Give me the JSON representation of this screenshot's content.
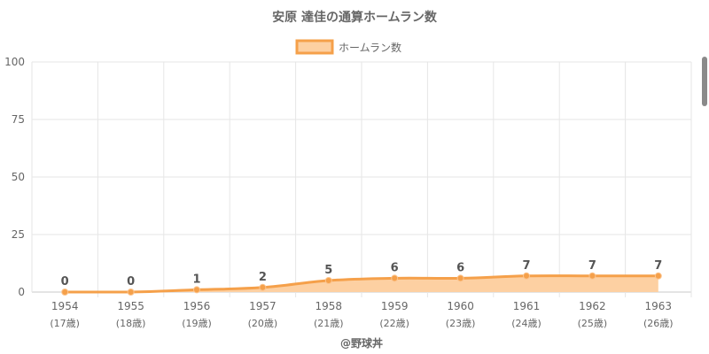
{
  "chart_data": {
    "type": "area",
    "title": "安原 達佳の通算ホームラン数",
    "legend": {
      "label": "ホームラン数",
      "position": "top"
    },
    "years": [
      "1954",
      "1955",
      "1956",
      "1957",
      "1958",
      "1959",
      "1960",
      "1961",
      "1962",
      "1963"
    ],
    "ages": [
      "(17歳)",
      "(18歳)",
      "(19歳)",
      "(20歳)",
      "(21歳)",
      "(22歳)",
      "(23歳)",
      "(24歳)",
      "(25歳)",
      "(26歳)"
    ],
    "series": [
      {
        "name": "ホームラン数",
        "values": [
          0,
          0,
          1,
          2,
          5,
          6,
          6,
          7,
          7,
          7
        ]
      }
    ],
    "ylim": [
      0,
      100
    ],
    "yticks": [
      0,
      25,
      50,
      75,
      100
    ],
    "grid": true,
    "colors": {
      "line": "#f5a04a",
      "fill": "#fdd0a2",
      "grid": "#e6e6e6",
      "text": "#666666"
    }
  },
  "footer": {
    "credit": "@野球丼"
  }
}
